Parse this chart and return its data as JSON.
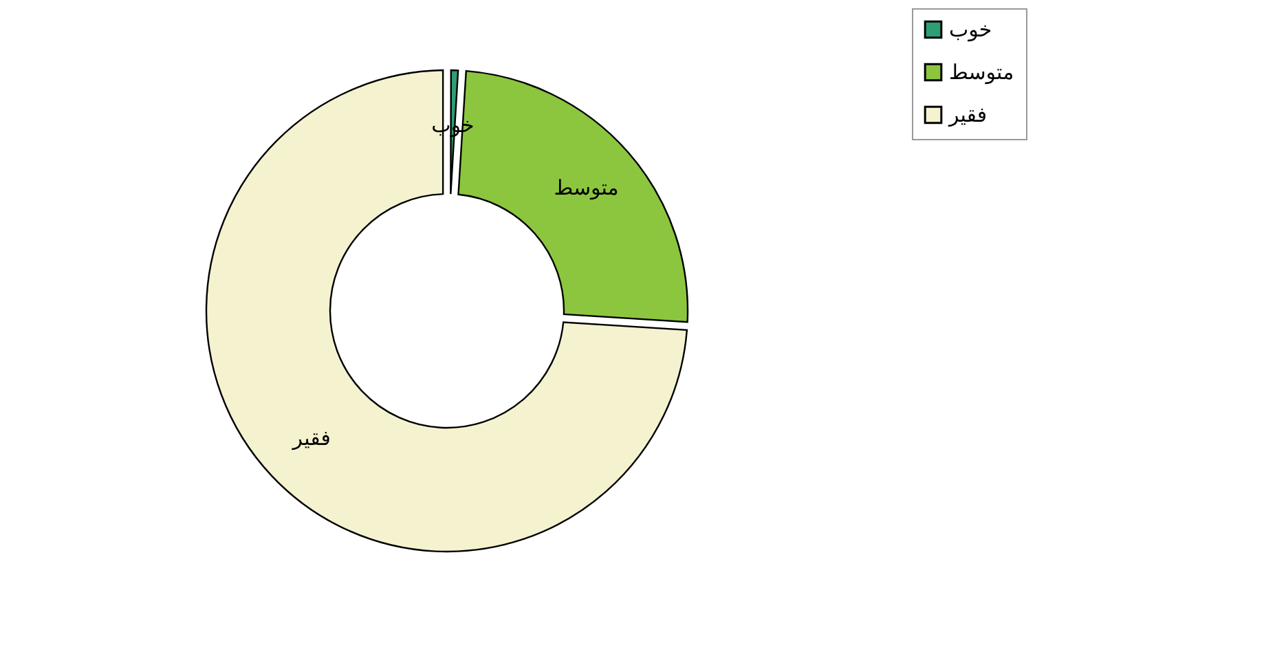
{
  "chart_data": {
    "type": "donut",
    "categories": [
      "خوب",
      "متوسط",
      "فقیر"
    ],
    "values": [
      1,
      25,
      74
    ],
    "colors": [
      "#2e9e74",
      "#8cc63f",
      "#f5f2d0"
    ],
    "legend": "right"
  }
}
